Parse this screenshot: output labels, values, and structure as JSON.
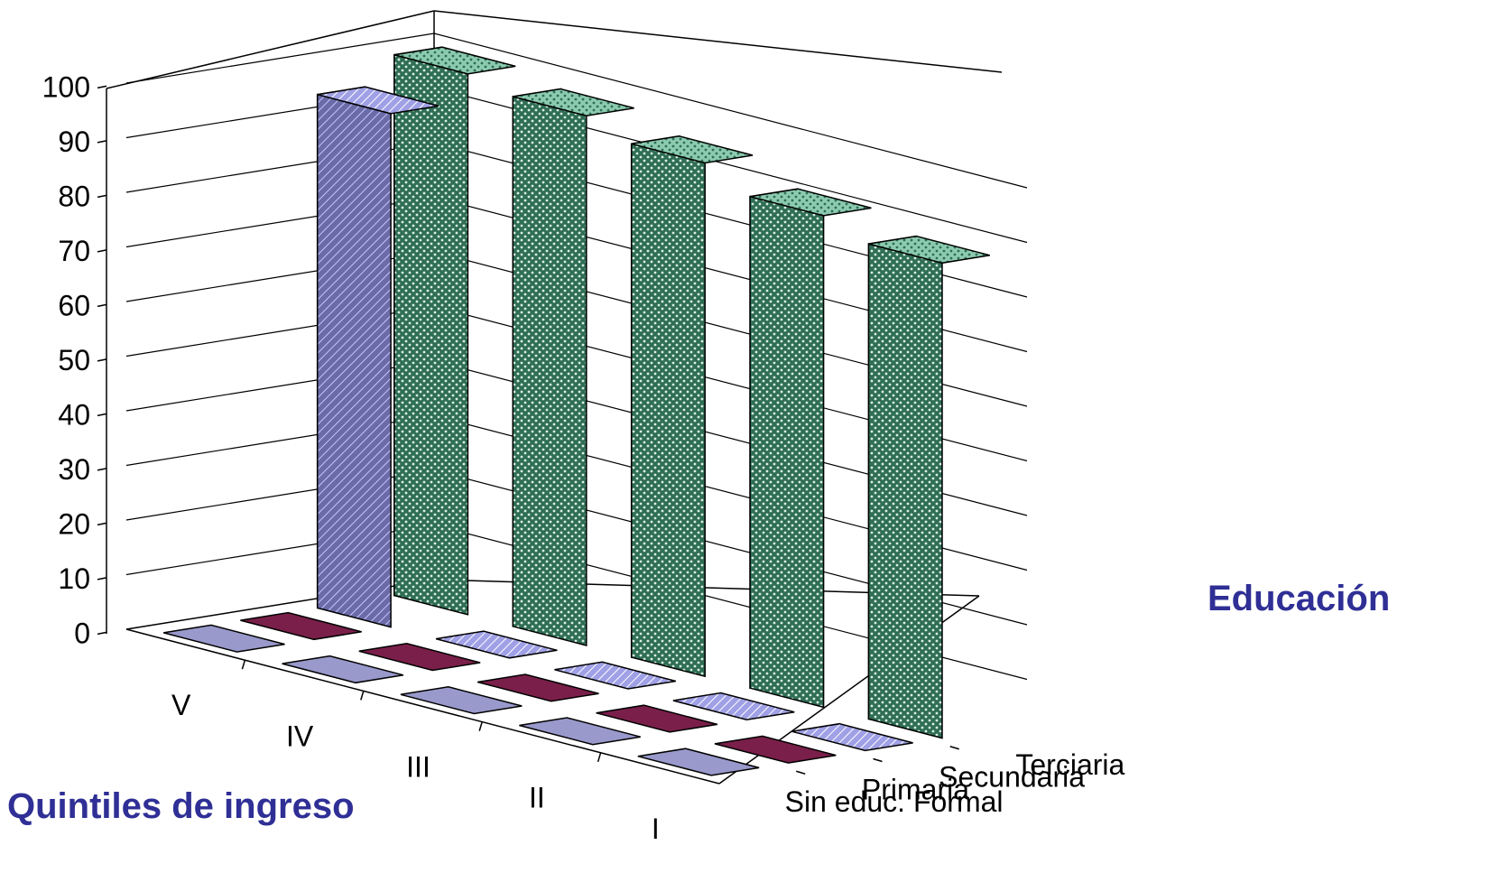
{
  "chart_data": {
    "type": "bar",
    "subtype": "3d-column",
    "title": "",
    "xlabel": "Quintiles de ingreso",
    "zlabel": "Educación",
    "ylabel": "",
    "ylim": [
      0,
      100
    ],
    "yticks": [
      "0",
      "10",
      "20",
      "30",
      "40",
      "50",
      "60",
      "70",
      "80",
      "90",
      "100"
    ],
    "categories": [
      "V",
      "IV",
      "III",
      "II",
      "I"
    ],
    "series": [
      {
        "name": "Sin educ. Formal",
        "values": [
          0,
          0,
          0,
          0,
          0
        ],
        "color": "#9999cc"
      },
      {
        "name": "Primaria",
        "values": [
          0,
          0,
          0,
          0,
          0
        ],
        "color": "#7a1f4a"
      },
      {
        "name": "Secundaria",
        "values": [
          94,
          0,
          0,
          0,
          0
        ],
        "color": "#a8a8f0"
      },
      {
        "name": "Terciaria",
        "values": [
          99,
          97,
          94,
          90,
          87
        ],
        "color": "#3e9a73"
      }
    ],
    "grid": true,
    "legend": "none"
  }
}
